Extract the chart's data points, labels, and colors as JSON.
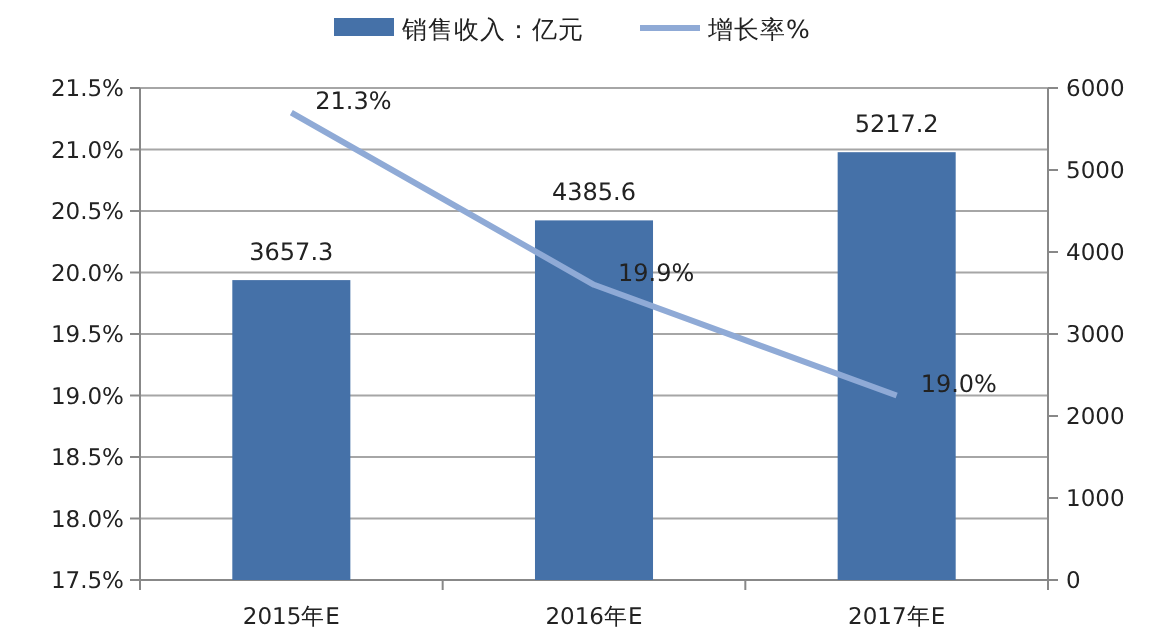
{
  "chart_data": {
    "type": "bar",
    "categories": [
      "2015年E",
      "2016年E",
      "2017年E"
    ],
    "series": [
      {
        "name": "销售收入：亿元",
        "axis": "y2",
        "color": "#4571a8",
        "values": [
          3657.3,
          4385.6,
          5217.2
        ],
        "data_labels": true
      },
      {
        "name": "增长率%",
        "type": "line",
        "axis": "y",
        "color": "#8faad6",
        "values": [
          21.3,
          19.9,
          19.0
        ],
        "value_labels": [
          "21.3%",
          "19.9%",
          "19.0%"
        ],
        "marker": "none"
      }
    ],
    "ylim": [
      17.5,
      21.5
    ],
    "yticks": [
      {
        "value": 17.5,
        "label": "17.5%"
      },
      {
        "value": 18.0,
        "label": "18.0%"
      },
      {
        "value": 18.5,
        "label": "18.5%"
      },
      {
        "value": 19.0,
        "label": "19.0%"
      },
      {
        "value": 19.5,
        "label": "19.5%"
      },
      {
        "value": 20.0,
        "label": "20.0%"
      },
      {
        "value": 20.5,
        "label": "20.5%"
      },
      {
        "value": 21.0,
        "label": "21.0%"
      },
      {
        "value": 21.5,
        "label": "21.5%"
      }
    ],
    "y2lim": [
      0,
      6000
    ],
    "y2ticks": [
      0,
      1000,
      2000,
      3000,
      4000,
      5000,
      6000
    ],
    "grid": "y",
    "legend": "top"
  }
}
